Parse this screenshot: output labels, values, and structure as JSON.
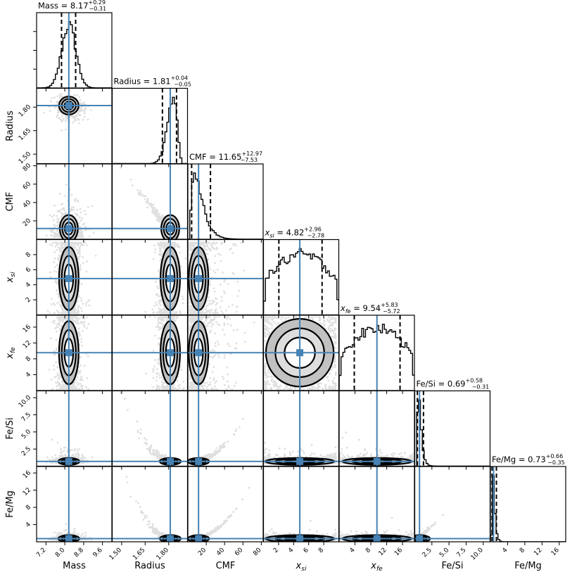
{
  "chart_data": {
    "type": "corner",
    "params": [
      {
        "key": "mass",
        "label": "Mass",
        "label_html": "Mass",
        "title_prefix": "Mass = ",
        "median": "8.17",
        "plus": "+0.29",
        "minus": "−0.31",
        "range": [
          6.8,
          10.0
        ],
        "med": 8.17,
        "lo": 7.86,
        "hi": 8.46,
        "sd": 0.3,
        "ticks": [
          7.2,
          8.0,
          8.8,
          9.6
        ],
        "tick_labels": [
          "7.2",
          "8.0",
          "8.8",
          "9.6"
        ],
        "hist": "normal"
      },
      {
        "key": "radius",
        "label": "Radius",
        "label_html": "Radius",
        "title_prefix": "Radius = ",
        "median": "1.81",
        "plus": "+0.04",
        "minus": "−0.05",
        "range": [
          1.44,
          1.92
        ],
        "med": 1.81,
        "lo": 1.76,
        "hi": 1.85,
        "sd": 0.045,
        "ticks": [
          1.5,
          1.65,
          1.8
        ],
        "tick_labels": [
          "1.50",
          "1.65",
          "1.80"
        ],
        "hist": "skew-left"
      },
      {
        "key": "cmf",
        "label": "CMF",
        "label_html": "CMF",
        "title_prefix": "CMF = ",
        "median": "11.65",
        "plus": "+12.97",
        "minus": "−7.53",
        "range": [
          0,
          82
        ],
        "med": 11.65,
        "lo": 4.12,
        "hi": 24.62,
        "sd": 12,
        "ticks": [
          20,
          40,
          60,
          80
        ],
        "tick_labels": [
          "20",
          "40",
          "60",
          "80"
        ],
        "hist": "skew-right"
      },
      {
        "key": "xsi",
        "label": "x_si",
        "label_html": "x",
        "label_sub": "si",
        "title_prefix": "x",
        "title_sub": "si",
        "title_rest": " = ",
        "median": "4.82",
        "plus": "+2.96",
        "minus": "−2.78",
        "range": [
          0,
          10
        ],
        "med": 4.82,
        "lo": 2.04,
        "hi": 7.78,
        "sd": 2.9,
        "ticks": [
          2,
          4,
          6,
          8
        ],
        "tick_labels": [
          "2",
          "4",
          "6",
          "8"
        ],
        "hist": "uniform"
      },
      {
        "key": "xfe",
        "label": "x_fe",
        "label_html": "x",
        "label_sub": "fe",
        "title_prefix": "x",
        "title_sub": "fe",
        "title_rest": " = ",
        "median": "9.54",
        "plus": "+5.83",
        "minus": "−5.72",
        "range": [
          0,
          19
        ],
        "med": 9.54,
        "lo": 3.82,
        "hi": 15.37,
        "sd": 5.7,
        "ticks": [
          4,
          8,
          12,
          16
        ],
        "tick_labels": [
          "4",
          "8",
          "12",
          "16"
        ],
        "hist": "uniform"
      },
      {
        "key": "fesi",
        "label": "Fe/Si",
        "label_html": "Fe/Si",
        "title_prefix": "Fe/Si = ",
        "median": "0.69",
        "plus": "+0.58",
        "minus": "−0.31",
        "range": [
          0,
          11
        ],
        "med": 0.69,
        "lo": 0.38,
        "hi": 1.27,
        "sd": 0.5,
        "ticks": [
          2.5,
          5.0,
          7.5,
          10.0
        ],
        "tick_labels": [
          "2.5",
          "5.0",
          "7.5",
          "10.0"
        ],
        "hist": "spike"
      },
      {
        "key": "femg",
        "label": "Fe/Mg",
        "label_html": "Fe/Mg",
        "title_prefix": "Fe/Mg = ",
        "median": "0.73",
        "plus": "+0.66",
        "minus": "−0.35",
        "range": [
          0,
          17.5
        ],
        "med": 0.73,
        "lo": 0.38,
        "hi": 1.39,
        "sd": 0.6,
        "ticks": [
          4,
          8,
          12,
          16
        ],
        "tick_labels": [
          "4",
          "8",
          "12",
          "16"
        ],
        "hist": "spike"
      }
    ],
    "row_ticks": {
      "radius": {
        "ticks": [
          1.5,
          1.65,
          1.8
        ],
        "labels": [
          "1.50",
          "1.65",
          "1.80"
        ]
      },
      "cmf": {
        "ticks": [
          20,
          40,
          60,
          80
        ],
        "labels": [
          "20",
          "40",
          "60",
          "80"
        ]
      },
      "xsi": {
        "ticks": [
          2,
          4,
          6,
          8
        ],
        "labels": [
          "2",
          "4",
          "6",
          "8"
        ]
      },
      "xfe": {
        "ticks": [
          4,
          8,
          12,
          16
        ],
        "labels": [
          "4",
          "8",
          "12",
          "16"
        ]
      },
      "fesi": {
        "ticks": [
          2.5,
          5.0,
          7.5,
          10.0
        ],
        "labels": [
          "2.5",
          "5.0",
          "7.5",
          "10.0"
        ]
      },
      "femg": {
        "ticks": [
          4,
          8,
          12,
          16
        ],
        "labels": [
          "4",
          "8",
          "12",
          "16"
        ]
      }
    },
    "colors": {
      "truth_line": "#4682b4",
      "hist": "#000000",
      "points": "#000000",
      "contour": "#000000"
    }
  }
}
